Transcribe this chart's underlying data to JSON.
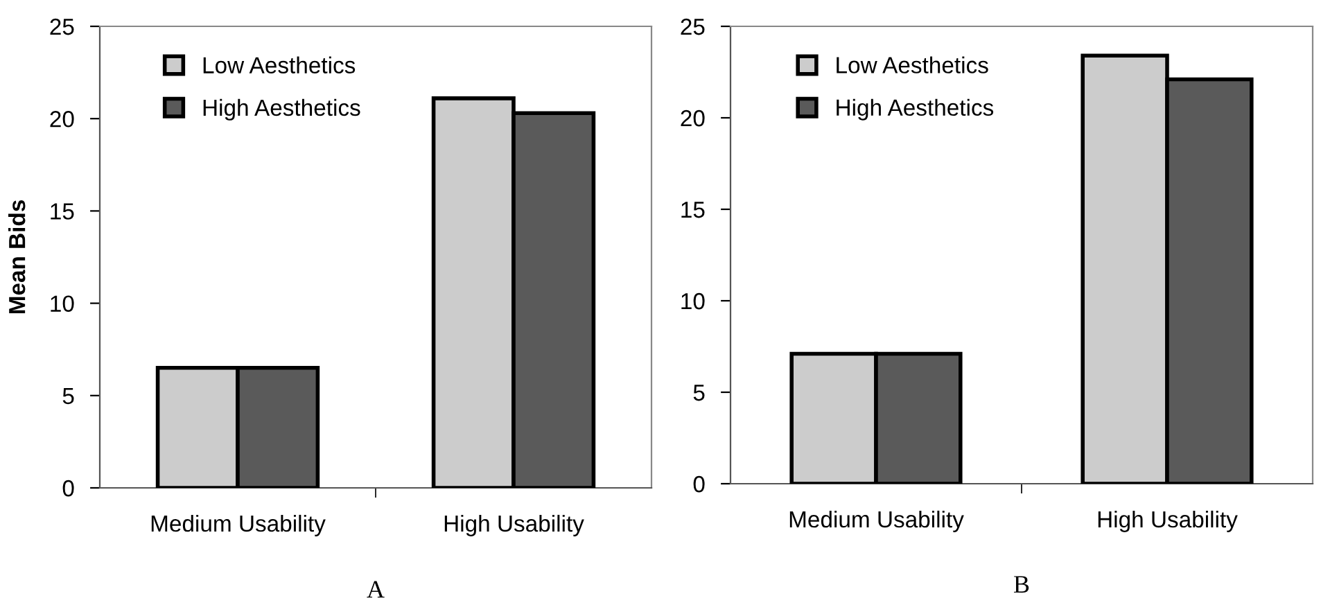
{
  "chart_data": [
    {
      "type": "bar",
      "ylabel": "Mean Bids",
      "categories": [
        "Medium Usability",
        "High Usability"
      ],
      "series": [
        {
          "name": "Low Aesthetics",
          "color": "#cccccc",
          "values": [
            6.5,
            21.1
          ]
        },
        {
          "name": "High Aesthetics",
          "color": "#5a5a5a",
          "values": [
            6.5,
            20.3
          ]
        }
      ],
      "ylim": [
        0,
        25
      ],
      "yticks": [
        0,
        5,
        10,
        15,
        20,
        25
      ],
      "grid": false,
      "legend": "top left",
      "annotations": [
        "A"
      ]
    },
    {
      "type": "bar",
      "categories": [
        "Medium Usability",
        "High Usability"
      ],
      "series": [
        {
          "name": "Low Aesthetics",
          "color": "#cccccc",
          "values": [
            7.1,
            23.4
          ]
        },
        {
          "name": "High Aesthetics",
          "color": "#5a5a5a",
          "values": [
            7.1,
            22.1
          ]
        }
      ],
      "ylim": [
        0,
        25
      ],
      "yticks": [
        0,
        5,
        10,
        15,
        20,
        25
      ],
      "grid": false,
      "legend": "top left",
      "annotations": [
        "B"
      ]
    }
  ]
}
